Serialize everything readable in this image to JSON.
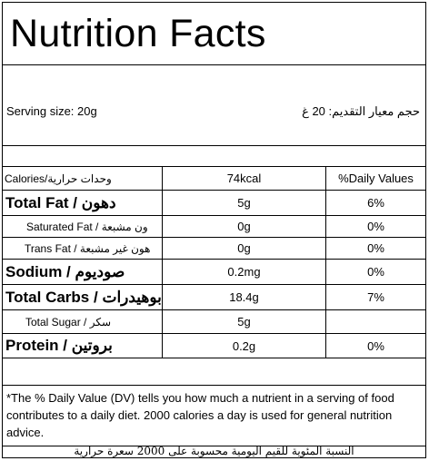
{
  "title": "Nutrition Facts",
  "serving": {
    "en": "Serving size: 20g",
    "ar": "حجم معيار التقديم: 20 غ"
  },
  "header": {
    "label": "Calories/وحدات حرارية",
    "value": "74kcal",
    "dv": "%Daily Values"
  },
  "rows": [
    {
      "label": "Total Fat / دهون",
      "amount": "5g",
      "dv": "6%"
    },
    {
      "label": "Saturated Fat / ون مشبعة",
      "amount": "0g",
      "dv": "0%"
    },
    {
      "label": "Trans Fat / هون غير مشبعة",
      "amount": "0g",
      "dv": "0%"
    },
    {
      "label": "Sodium / صوديوم",
      "amount": "0.2mg",
      "dv": "0%"
    },
    {
      "label": "Total Carbs / بوهيدرات",
      "amount": "18.4g",
      "dv": "7%"
    },
    {
      "label": "Total Sugar / سكر",
      "amount": "5g",
      "dv": ""
    },
    {
      "label": "Protein / بروتين",
      "amount": "0.2g",
      "dv": "0%"
    }
  ],
  "footnote": {
    "en": "*The % Daily Value (DV) tells you how much a nutrient in a serving of food contributes to a daily diet. 2000 calories a day is used for general nutrition advice.",
    "ar": "النسبة المئوية للقيم اليومية محسوبة على 2000 سعرة حرارية"
  }
}
